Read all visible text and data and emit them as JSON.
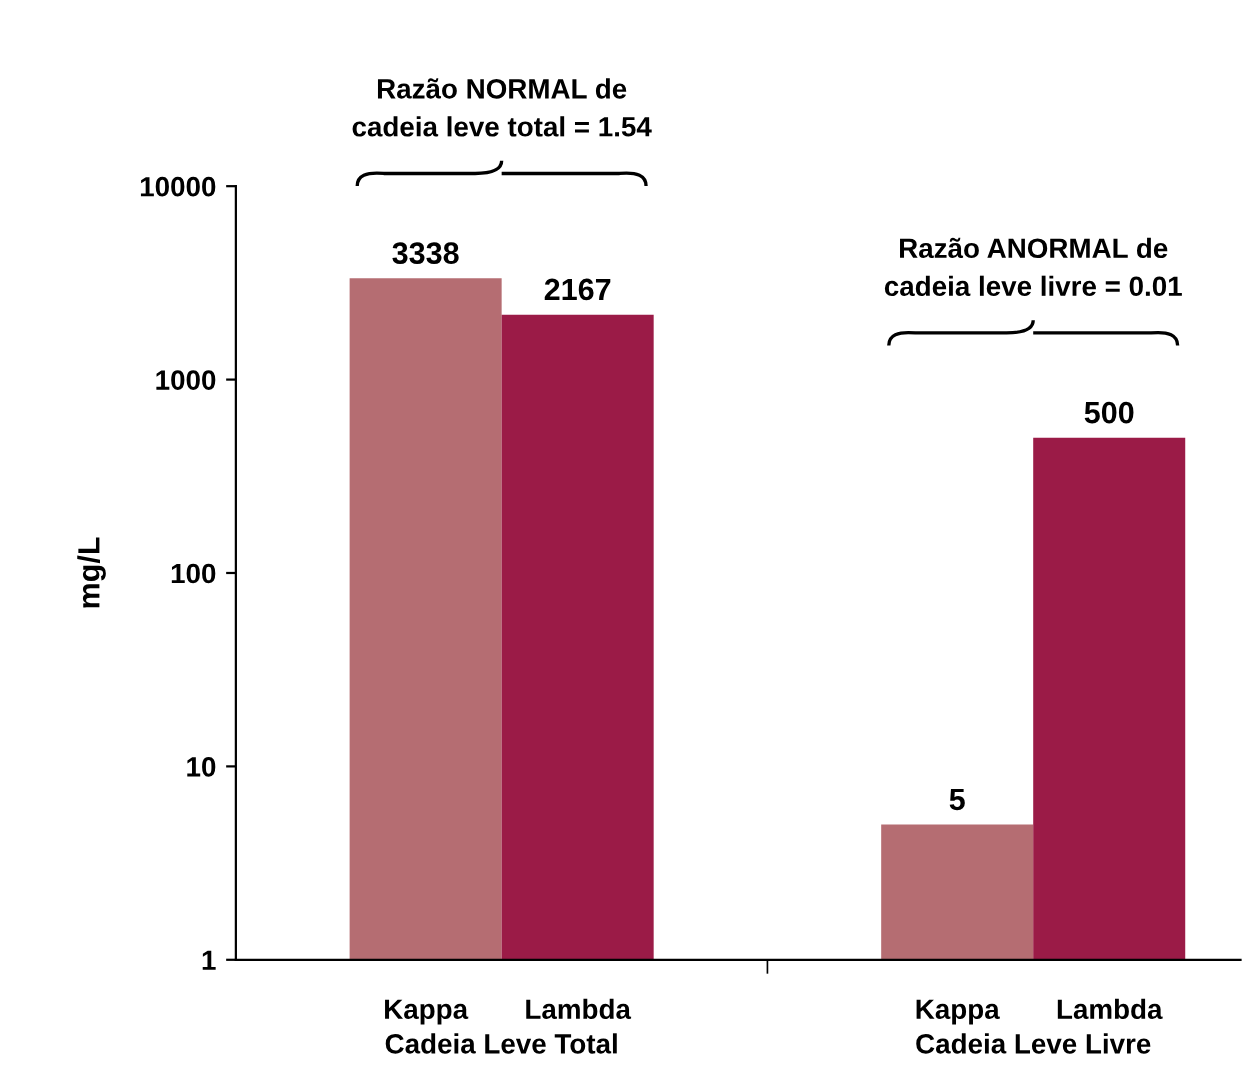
{
  "chart_data": {
    "type": "bar",
    "ylabel": "mg/L",
    "categories": [
      "Cadeia Leve Total",
      "Cadeia Leve Livre"
    ],
    "series": [
      {
        "name": "Kappa",
        "color": "#b56d72",
        "values": [
          3338,
          5
        ]
      },
      {
        "name": "Lambda",
        "color": "#9b1b47",
        "values": [
          2167,
          500
        ]
      }
    ],
    "log": true,
    "ylim": [
      1,
      10000
    ],
    "yticks": [
      1,
      10,
      100,
      1000,
      10000
    ],
    "data_labels": true,
    "grid": false,
    "legend": false,
    "annotations": [
      "Razão NORMAL de\ncadeia leve total = 1.54",
      "Razão ANORMAL de\ncadeia leve livre = 0.01"
    ]
  }
}
